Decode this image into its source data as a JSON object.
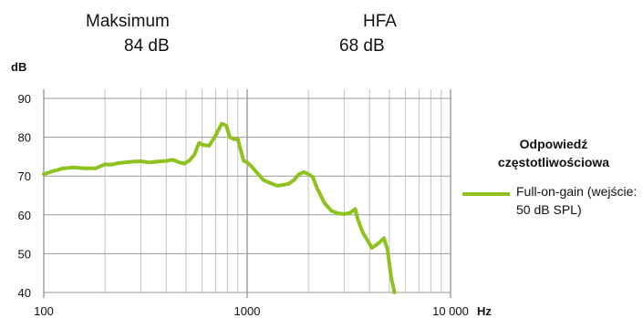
{
  "header": {
    "items": [
      {
        "label": "Maksimum",
        "value": "84  dB"
      },
      {
        "label": "HFA",
        "value": "68  dB"
      }
    ]
  },
  "chart_data": {
    "type": "line",
    "title": "",
    "xlabel": "Hz",
    "ylabel": "dB",
    "xscale": "log",
    "xlim": [
      100,
      10000
    ],
    "ylim": [
      40,
      90
    ],
    "xticks": [
      100,
      1000,
      10000
    ],
    "xtick_labels": [
      "100",
      "1000",
      "10 000"
    ],
    "yticks": [
      40,
      50,
      60,
      70,
      80,
      90
    ],
    "grid": true,
    "legend": {
      "title": "Odpowiedź częstotliwościowa",
      "placement": "right"
    },
    "series": [
      {
        "name": "Full-on-gain (wejście: 50 dB SPL)",
        "color": "#8dc21f",
        "x": [
          100,
          110,
          125,
          140,
          160,
          180,
          200,
          215,
          230,
          250,
          275,
          300,
          330,
          360,
          400,
          430,
          460,
          490,
          520,
          550,
          580,
          610,
          650,
          700,
          750,
          790,
          820,
          860,
          900,
          960,
          1000,
          1050,
          1100,
          1200,
          1300,
          1400,
          1500,
          1600,
          1700,
          1800,
          1900,
          2000,
          2100,
          2200,
          2400,
          2600,
          2800,
          3000,
          3200,
          3400,
          3500,
          3700,
          3900,
          4100,
          4300,
          4500,
          4700,
          4900,
          5100,
          5300
        ],
        "y": [
          70.5,
          71.2,
          72.0,
          72.2,
          72.0,
          72.0,
          73.0,
          72.9,
          73.3,
          73.5,
          73.7,
          73.8,
          73.5,
          73.7,
          73.9,
          74.2,
          73.6,
          73.2,
          74.0,
          75.5,
          78.5,
          78.0,
          77.8,
          80.5,
          83.5,
          83.0,
          80.0,
          79.5,
          79.5,
          74.0,
          73.5,
          72.5,
          71.3,
          69.0,
          68.2,
          67.5,
          67.7,
          68.0,
          69.0,
          70.5,
          71.0,
          70.5,
          69.8,
          67.0,
          63.0,
          61.0,
          60.4,
          60.2,
          60.5,
          61.5,
          58.8,
          55.5,
          53.5,
          51.5,
          52.2,
          53.0,
          54.0,
          51.0,
          44.0,
          40.0
        ]
      }
    ]
  }
}
